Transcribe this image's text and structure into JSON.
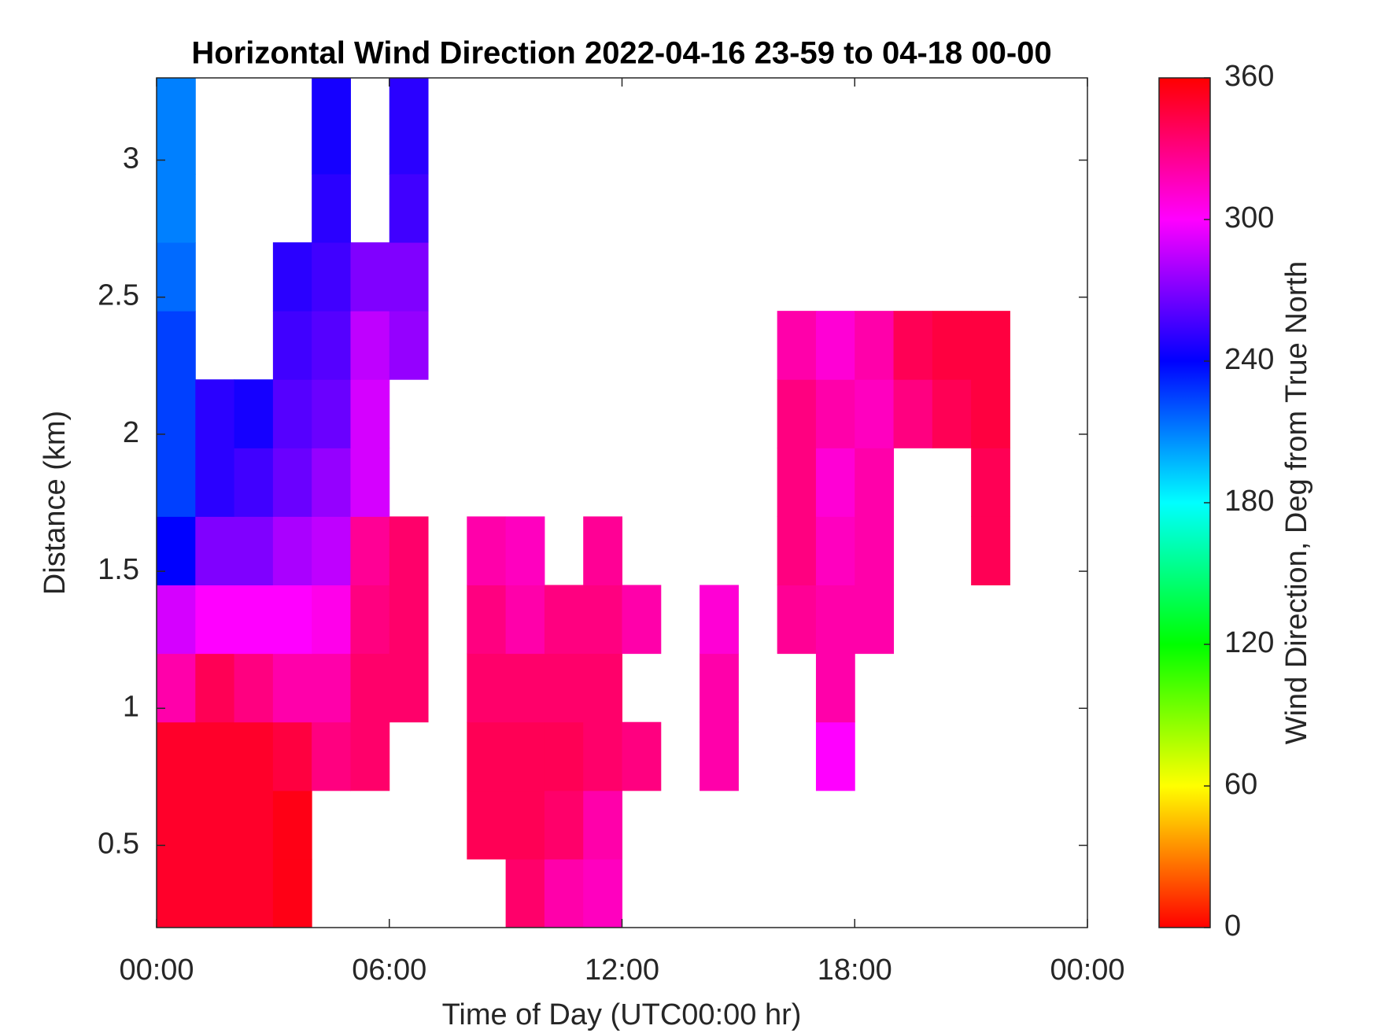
{
  "chart_data": {
    "type": "heatmap",
    "title": "Horizontal Wind Direction 2022-04-16 23-59 to 04-18 00-00",
    "x_label": "Time of Day (UTC00:00 hr)",
    "y_label": "Distance (km)",
    "colorbar_label": "Wind Direction, Deg from True North",
    "colormap": "hsv",
    "xlim": [
      0,
      24
    ],
    "xticks": [
      {
        "value": 0,
        "label": "00:00"
      },
      {
        "value": 6,
        "label": "06:00"
      },
      {
        "value": 12,
        "label": "12:00"
      },
      {
        "value": 18,
        "label": "18:00"
      },
      {
        "value": 24,
        "label": "00:00"
      }
    ],
    "ylim": [
      0.2,
      3.3
    ],
    "yticks": [
      0.5,
      1,
      1.5,
      2,
      2.5,
      3
    ],
    "zlim": [
      0,
      360
    ],
    "zticks": [
      0,
      60,
      120,
      180,
      240,
      300,
      360
    ],
    "xbins": [
      0,
      1,
      2,
      3,
      4,
      5,
      6,
      7,
      8,
      9,
      10,
      11,
      12,
      13,
      14,
      15,
      16,
      17,
      18,
      19,
      20,
      21,
      22,
      23,
      24
    ],
    "ybins": [
      0.2,
      0.45,
      0.7,
      0.95,
      1.2,
      1.45,
      1.7,
      1.95,
      2.2,
      2.45,
      2.7,
      2.95,
      3.3
    ],
    "values": [
      [
        350,
        350,
        350,
        355,
        null,
        null,
        null,
        null,
        null,
        335,
        320,
        315,
        null,
        null,
        null,
        null,
        null,
        null,
        null,
        null,
        null,
        null,
        null,
        null
      ],
      [
        350,
        350,
        350,
        355,
        null,
        null,
        null,
        null,
        340,
        340,
        335,
        320,
        null,
        null,
        null,
        null,
        null,
        null,
        null,
        null,
        null,
        null,
        null,
        null
      ],
      [
        350,
        350,
        350,
        345,
        330,
        335,
        null,
        null,
        340,
        340,
        340,
        335,
        330,
        null,
        320,
        null,
        null,
        300,
        null,
        null,
        null,
        null,
        null,
        null
      ],
      [
        320,
        340,
        330,
        320,
        320,
        335,
        335,
        null,
        335,
        335,
        335,
        335,
        null,
        null,
        320,
        null,
        null,
        320,
        null,
        null,
        null,
        null,
        null,
        null
      ],
      [
        290,
        300,
        300,
        300,
        305,
        330,
        335,
        null,
        330,
        320,
        330,
        330,
        320,
        null,
        310,
        null,
        325,
        320,
        320,
        null,
        null,
        null,
        null,
        null
      ],
      [
        240,
        270,
        270,
        280,
        285,
        325,
        335,
        null,
        320,
        315,
        null,
        325,
        null,
        null,
        null,
        null,
        330,
        315,
        320,
        null,
        null,
        340,
        null,
        null
      ],
      [
        225,
        250,
        255,
        265,
        275,
        290,
        null,
        null,
        null,
        null,
        null,
        null,
        null,
        null,
        null,
        null,
        330,
        310,
        320,
        null,
        null,
        340,
        null,
        null
      ],
      [
        225,
        250,
        245,
        260,
        265,
        290,
        null,
        null,
        null,
        null,
        null,
        null,
        null,
        null,
        null,
        null,
        330,
        320,
        315,
        330,
        340,
        345,
        null,
        null
      ],
      [
        225,
        null,
        null,
        255,
        260,
        285,
        275,
        null,
        null,
        null,
        null,
        null,
        null,
        null,
        null,
        null,
        320,
        310,
        320,
        340,
        345,
        345,
        null,
        null
      ],
      [
        215,
        null,
        null,
        250,
        255,
        270,
        270,
        null,
        null,
        null,
        null,
        null,
        null,
        null,
        null,
        null,
        null,
        null,
        null,
        null,
        null,
        null,
        null,
        null
      ],
      [
        210,
        null,
        null,
        null,
        250,
        null,
        255,
        null,
        null,
        null,
        null,
        null,
        null,
        null,
        null,
        null,
        null,
        null,
        null,
        null,
        null,
        null,
        null,
        null
      ],
      [
        210,
        null,
        null,
        null,
        245,
        null,
        250,
        null,
        null,
        null,
        null,
        null,
        null,
        null,
        null,
        null,
        null,
        null,
        null,
        null,
        null,
        null,
        null,
        null
      ]
    ]
  }
}
